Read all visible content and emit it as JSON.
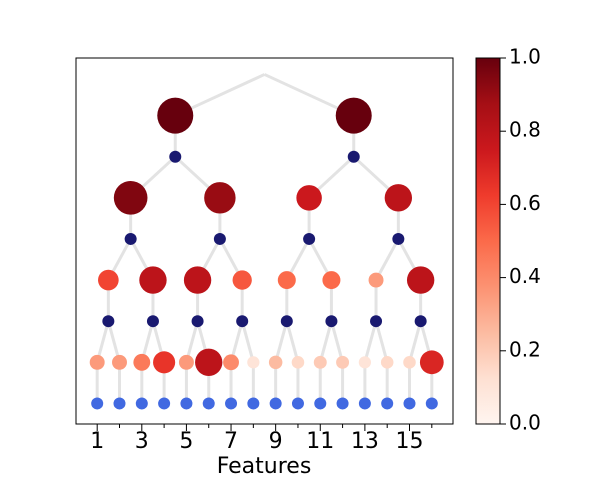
{
  "chart_data": {
    "type": "tree",
    "xlabel": "Features",
    "xlim": [
      0.05,
      16.95
    ],
    "xticks": [
      1,
      3,
      5,
      7,
      9,
      11,
      13,
      15
    ],
    "xminorticks": [
      2,
      4,
      6,
      8,
      10,
      12,
      14,
      16
    ],
    "ylim": [
      -0.5,
      8.4
    ],
    "colormap": "Reds",
    "clim": [
      0,
      1
    ],
    "cticks": [
      {
        "value": 0,
        "label": "0.0"
      },
      {
        "value": 0.2,
        "label": "0.2"
      },
      {
        "value": 0.4,
        "label": "0.4"
      },
      {
        "value": 0.6,
        "label": "0.6"
      },
      {
        "value": 0.8,
        "label": "0.8"
      },
      {
        "value": 1,
        "label": "1.0"
      }
    ],
    "stages": [
      {
        "y": 0,
        "color": "#4169e1",
        "x": [
          1,
          2,
          3,
          4,
          5,
          6,
          7,
          8,
          9,
          10,
          11,
          12,
          13,
          14,
          15,
          16
        ]
      },
      {
        "y": 1,
        "x": [
          1,
          2,
          3,
          4,
          5,
          6,
          7,
          8,
          9,
          10,
          11,
          12,
          13,
          14,
          15,
          16
        ],
        "values": [
          0.35,
          0.35,
          0.45,
          0.65,
          0.35,
          0.8,
          0.4,
          0.1,
          0.25,
          0.15,
          0.2,
          0.2,
          0.1,
          0.15,
          0.15,
          0.7
        ]
      },
      {
        "y": 2,
        "color": "#191970",
        "x": [
          1.5,
          3.5,
          5.5,
          7.5,
          9.5,
          11.5,
          13.5,
          15.5
        ]
      },
      {
        "y": 3,
        "x": [
          1.5,
          3.5,
          5.5,
          7.5,
          9.5,
          11.5,
          13.5,
          15.5
        ],
        "values": [
          0.6,
          0.8,
          0.8,
          0.55,
          0.5,
          0.5,
          0.35,
          0.8
        ]
      },
      {
        "y": 4,
        "color": "#191970",
        "x": [
          2.5,
          6.5,
          10.5,
          14.5
        ]
      },
      {
        "y": 5,
        "x": [
          2.5,
          6.5,
          10.5,
          14.5
        ],
        "values": [
          0.95,
          0.9,
          0.75,
          0.8
        ]
      },
      {
        "y": 6,
        "color": "#191970",
        "x": [
          4.5,
          12.5
        ]
      },
      {
        "y": 7,
        "x": [
          4.5,
          12.5
        ],
        "values": [
          1,
          1
        ]
      },
      {
        "y": 8,
        "x": [
          8.5
        ]
      }
    ]
  }
}
